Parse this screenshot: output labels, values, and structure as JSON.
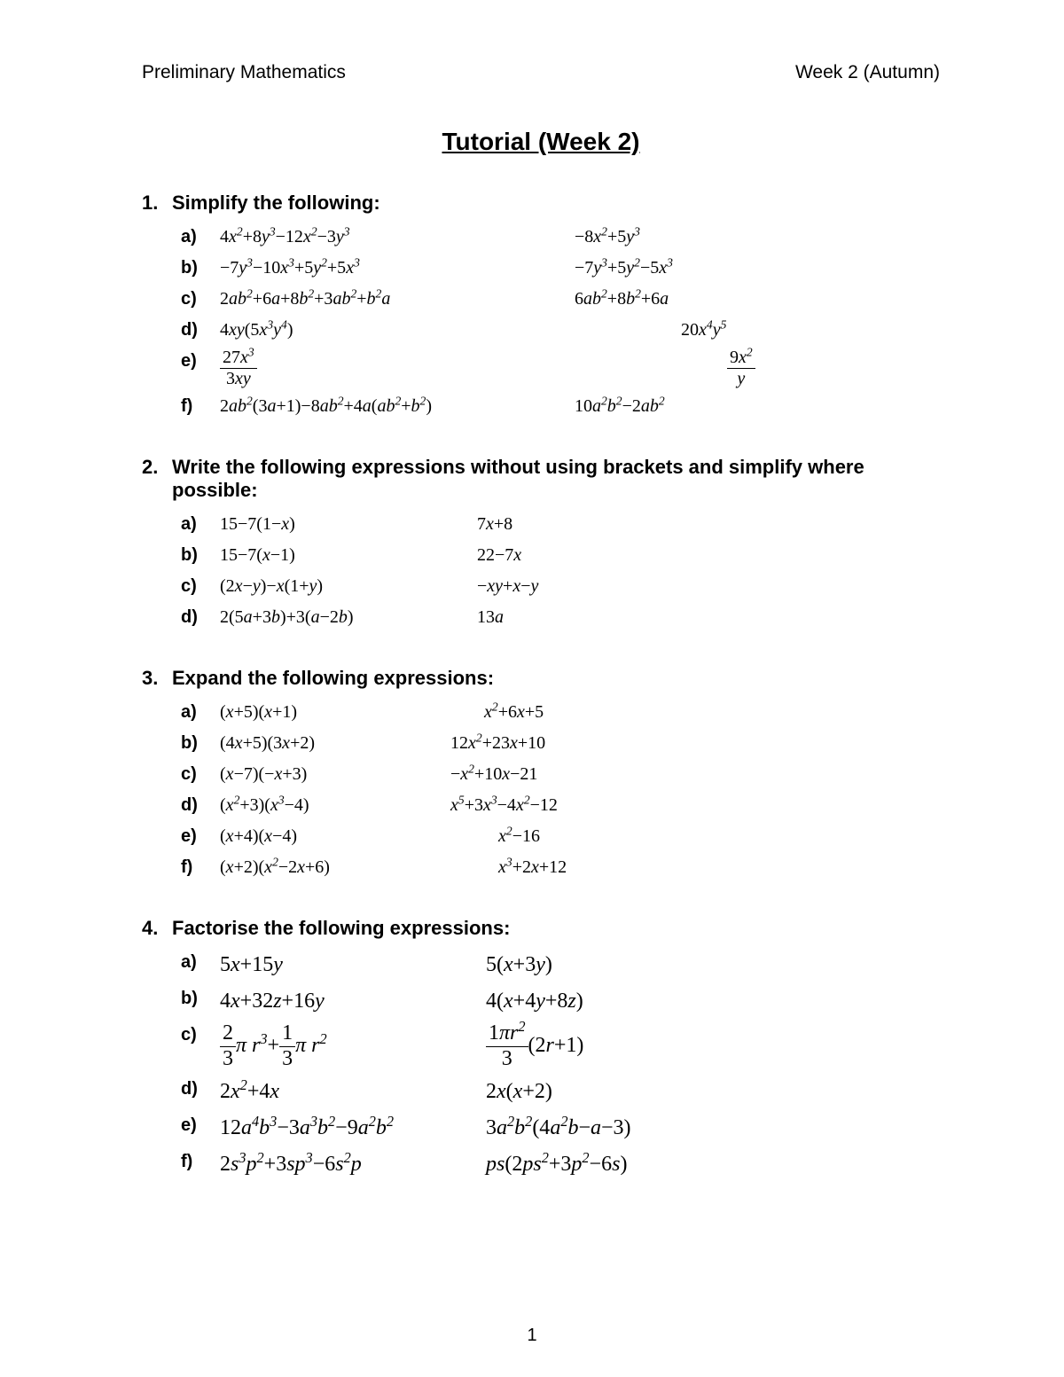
{
  "header": {
    "left": "Preliminary Mathematics",
    "right": "Week 2 (Autumn)"
  },
  "title": "Tutorial (Week 2)",
  "page_number": "1",
  "colors": {
    "text": "#000000",
    "background": "#ffffff"
  },
  "typography": {
    "body_font": "Arial",
    "math_font": "Cambria Math",
    "title_size_pt": 21,
    "body_size_pt": 15
  },
  "sections": [
    {
      "num": "1.",
      "heading": "Simplify the following:",
      "class": "s1",
      "items": [
        {
          "label": "a)",
          "q": "<span class='n'>4</span>x<sup>2</sup><span class='n'>+8</span>y<sup>3</sup><span class='n'>−12</span>x<sup>2</sup><span class='n'>−3</span>y<sup>3</sup>",
          "a": "<span class='n'>−8</span>x<sup>2</sup><span class='n'>+5</span>y<sup>3</sup>"
        },
        {
          "label": "b)",
          "q": "<span class='n'>−7</span>y<sup>3</sup><span class='n'>−10</span>x<sup>3</sup><span class='n'>+5</span>y<sup>2</sup><span class='n'>+5</span>x<sup>3</sup>",
          "a": "<span class='n'>−7</span>y<sup>3</sup><span class='n'>+5</span>y<sup>2</sup><span class='n'>−5</span>x<sup>3</sup>"
        },
        {
          "label": "c)",
          "q": "<span class='n'>2</span>ab<sup>2</sup><span class='n'>+6</span>a<span class='n'>+8</span>b<sup>2</sup><span class='n'>+3</span>ab<sup>2</sup><span class='n'>+</span>b<sup>2</sup>a",
          "a": "<span class='n'>6</span>ab<sup>2</sup><span class='n'>+8</span>b<sup>2</sup><span class='n'>+6</span>a"
        },
        {
          "label": "d)",
          "q": "<span class='n'>4</span>xy<span class='n'>(5</span>x<sup>3</sup>y<sup>4</sup><span class='n'>)</span>",
          "a": "<span class='n'>20</span>x<sup>4</sup>y<sup>5</sup>",
          "a_pad": 120
        },
        {
          "label": "e)",
          "q": "<span class='frac'><span class='num'><span class='n'>27</span>x<sup>3</sup></span><span class='den'><span class='n'>3</span>xy</span></span>",
          "a": "<span class='frac'><span class='num'><span class='n'>9</span>x<sup>2</sup></span><span class='den'>y</span></span>",
          "a_pad": 172
        },
        {
          "label": "f)",
          "q": "<span class='n'>2</span>ab<sup>2</sup><span class='n'>(3</span>a<span class='n'>+1)−8</span>ab<sup>2</sup><span class='n'>+4</span>a<span class='n'>(</span>ab<sup>2</sup><span class='n'>+</span>b<sup>2</sup><span class='n'>)</span>",
          "a": "<span class='n'>10</span>a<sup>2</sup>b<sup>2</sup><span class='n'>−2</span>ab<sup>2</sup>"
        }
      ]
    },
    {
      "num": "2.",
      "heading": "Write the following expressions without using brackets and simplify where possible:",
      "class": "s2",
      "items": [
        {
          "label": "a)",
          "q": "<span class='n'>15−7(1−</span>x<span class='n'>)</span>",
          "a": "<span class='n'>7</span>x<span class='n'>+8</span>"
        },
        {
          "label": "b)",
          "q": "<span class='n'>15−7(</span>x<span class='n'>−1)</span>",
          "a": "<span class='n'>22−7</span>x"
        },
        {
          "label": "c)",
          "q": "<span class='n'>(2</span>x<span class='n'>−</span>y<span class='n'>)−</span>x<span class='n'>(1+</span>y<span class='n'>)</span>",
          "a": "<span class='n'>−</span>xy<span class='n'>+</span>x<span class='n'>−</span>y",
          "a_pad": -48
        },
        {
          "label": "d)",
          "q": "<span class='n'>2(5</span>a<span class='n'>+3</span>b<span class='n'>)+3(</span>a<span class='n'>−2</span>b<span class='n'>)</span>",
          "a": "<span class='n'>13</span>a",
          "a_pad": -48
        }
      ]
    },
    {
      "num": "3.",
      "heading": "Expand the following expressions:",
      "class": "s3",
      "items": [
        {
          "label": "a)",
          "q": "<span class='n'>(</span>x<span class='n'>+5)(</span>x<span class='n'>+1)</span>",
          "a": "x<sup>2</sup><span class='n'>+6</span>x<span class='n'>+5</span>",
          "a_pad": 38
        },
        {
          "label": "b)",
          "q": "<span class='n'>(4</span>x<span class='n'>+5)(3</span>x<span class='n'>+2)</span>",
          "a": "<span class='n'>12</span>x<sup>2</sup><span class='n'>+23</span>x<span class='n'>+10</span>"
        },
        {
          "label": "c)",
          "q": "<span class='n'>(</span>x<span class='n'>−7)(−</span>x<span class='n'>+3)</span>",
          "a": "<span class='n'>−</span>x<sup>2</sup><span class='n'>+10</span>x<span class='n'>−21</span>"
        },
        {
          "label": "d)",
          "q": "<span class='n'>(</span>x<sup>2</sup><span class='n'>+3)(</span>x<sup>3</sup><span class='n'>−4)</span>",
          "a": "x<sup>5</sup><span class='n'>+3</span>x<sup>3</sup><span class='n'>−4</span>x<sup>2</sup><span class='n'>−12</span>"
        },
        {
          "label": "e)",
          "q": "<span class='n'>(</span>x<span class='n'>+4)(</span>x<span class='n'>−4)</span>",
          "a": "x<sup>2</sup><span class='n'>−16</span>",
          "a_pad": 54
        },
        {
          "label": "f)",
          "q": "<span class='n'>(</span>x<span class='n'>+2)(</span>x<sup>2</sup><span class='n'>−2</span>x<span class='n'>+6)</span>",
          "a": "x<sup>3</sup><span class='n'>+2</span>x<span class='n'>+12</span>",
          "a_pad": 54
        }
      ]
    },
    {
      "num": "4.",
      "heading": "Factorise the following expressions:",
      "class": "s4",
      "items": [
        {
          "label": "a)",
          "big": true,
          "q": "<span class='n'>5</span>x<span class='n'>+15</span>y",
          "a": "<span class='n'>5(</span>x<span class='n'>+3</span>y<span class='n'>)</span>"
        },
        {
          "label": "b)",
          "big": true,
          "q": "<span class='n'>4</span>x<span class='n'>+32</span>z<span class='n'>+16</span>y",
          "a": "<span class='n'>4(</span>x<span class='n'>+4</span>y<span class='n'>+8</span>z<span class='n'>)</span>"
        },
        {
          "label": "c)",
          "big": true,
          "q": "<span class='frac'><span class='num'><span class='n'>2</span></span><span class='den'><span class='n'>3</span></span></span>π r<sup>3</sup><span class='n'>+</span><span class='frac'><span class='num'><span class='n'>1</span></span><span class='den'><span class='n'>3</span></span></span>π r<sup>2</sup>",
          "a": "<span class='frac'><span class='num'><span class='n'>1</span>πr<sup>2</sup></span><span class='den'><span class='n'>3</span></span></span><span class='n'>(2</span>r<span class='n'>+1)</span>"
        },
        {
          "label": "d)",
          "big": true,
          "q": "<span class='n'>2</span>x<sup>2</sup><span class='n'>+4</span>x",
          "a": "<span class='n'>2</span>x<span class='n'>(</span>x<span class='n'>+2)</span>"
        },
        {
          "label": "e)",
          "big": true,
          "q": "<span class='n'>12</span>a<sup>4</sup>b<sup>3</sup><span class='n'>−3</span>a<sup>3</sup>b<sup>2</sup><span class='n'>−9</span>a<sup>2</sup>b<sup>2</sup>",
          "a": "<span class='n'>3</span>a<sup>2</sup>b<sup>2</sup><span class='n'>(4</span>a<sup>2</sup>b<span class='n'>−</span>a<span class='n'>−3)</span>"
        },
        {
          "label": "f)",
          "big": true,
          "q": "<span class='n'>2</span>s<sup>3</sup>p<sup>2</sup><span class='n'>+3</span>sp<sup>3</sup><span class='n'>−6</span>s<sup>2</sup>p",
          "a": "ps<span class='n'>(2</span>ps<sup>2</sup><span class='n'>+3</span>p<sup>2</sup><span class='n'>−6</span>s<span class='n'>)</span>"
        }
      ]
    }
  ]
}
